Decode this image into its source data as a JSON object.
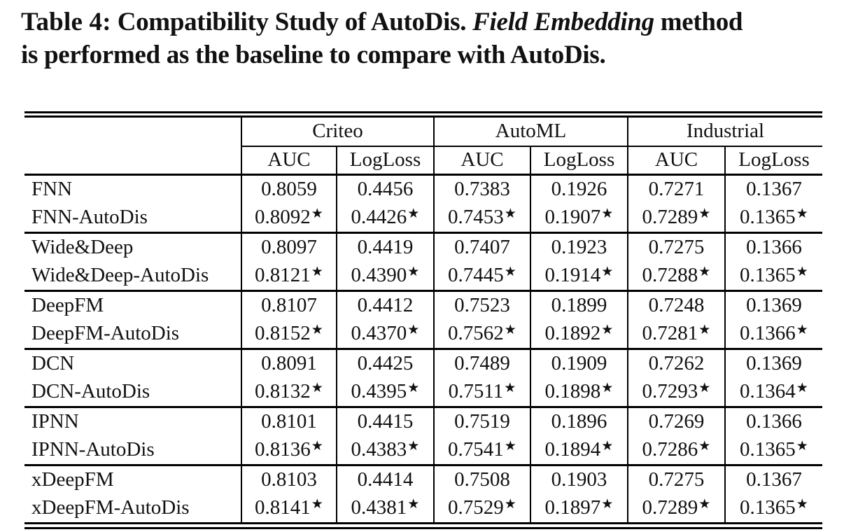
{
  "caption": {
    "label": "Table 4:",
    "part1": "Compatibility Study of AutoDis.",
    "italic": "Field Embedding",
    "part2": "method",
    "line2": "is performed as the baseline to compare with AutoDis."
  },
  "table": {
    "groups": [
      "Criteo",
      "AutoML",
      "Industrial"
    ],
    "metrics": [
      "AUC",
      "LogLoss",
      "AUC",
      "LogLoss",
      "AUC",
      "LogLoss"
    ],
    "rows": [
      {
        "name": "FNN",
        "values": [
          "0.8059",
          "0.4456",
          "0.7383",
          "0.1926",
          "0.7271",
          "0.1367"
        ]
      },
      {
        "name": "FNN-AutoDis",
        "values": [
          "0.8092★",
          "0.4426★",
          "0.7453★",
          "0.1907★",
          "0.7289★",
          "0.1365★"
        ]
      },
      {
        "name": "Wide&Deep",
        "values": [
          "0.8097",
          "0.4419",
          "0.7407",
          "0.1923",
          "0.7275",
          "0.1366"
        ]
      },
      {
        "name": "Wide&Deep-AutoDis",
        "values": [
          "0.8121★",
          "0.4390★",
          "0.7445★",
          "0.1914★",
          "0.7288★",
          "0.1365★"
        ]
      },
      {
        "name": "DeepFM",
        "values": [
          "0.8107",
          "0.4412",
          "0.7523",
          "0.1899",
          "0.7248",
          "0.1369"
        ]
      },
      {
        "name": "DeepFM-AutoDis",
        "values": [
          "0.8152★",
          "0.4370★",
          "0.7562★",
          "0.1892★",
          "0.7281★",
          "0.1366★"
        ]
      },
      {
        "name": "DCN",
        "values": [
          "0.8091",
          "0.4425",
          "0.7489",
          "0.1909",
          "0.7262",
          "0.1369"
        ]
      },
      {
        "name": "DCN-AutoDis",
        "values": [
          "0.8132★",
          "0.4395★",
          "0.7511★",
          "0.1898★",
          "0.7293★",
          "0.1364★"
        ]
      },
      {
        "name": "IPNN",
        "values": [
          "0.8101",
          "0.4415",
          "0.7519",
          "0.1896",
          "0.7269",
          "0.1366"
        ]
      },
      {
        "name": "IPNN-AutoDis",
        "values": [
          "0.8136★",
          "0.4383★",
          "0.7541★",
          "0.1894★",
          "0.7286★",
          "0.1365★"
        ]
      },
      {
        "name": "xDeepFM",
        "values": [
          "0.8103",
          "0.4414",
          "0.7508",
          "0.1903",
          "0.7275",
          "0.1367"
        ]
      },
      {
        "name": "xDeepFM-AutoDis",
        "values": [
          "0.8141★",
          "0.4381★",
          "0.7529★",
          "0.1897★",
          "0.7289★",
          "0.1365★"
        ]
      }
    ]
  },
  "colors": {
    "text": "#111111",
    "rule": "#000000",
    "background": "#ffffff"
  }
}
